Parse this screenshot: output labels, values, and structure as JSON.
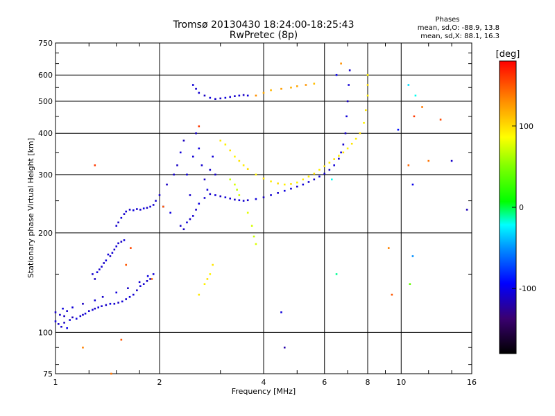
{
  "chart_data": {
    "type": "scatter",
    "title": "Tromsø 20130430 18:24:00-18:25:43",
    "subtitle": "RwPretec (8p)",
    "stats": {
      "heading": "Phases",
      "line_o": "mean, sd,O: -88.9, 13.8",
      "line_x": "mean, sd,X:  88.1, 16.3"
    },
    "xlabel": "Frequency [MHz]",
    "ylabel": "Stationary phase Virtual Height [km]",
    "x_scale": "log",
    "y_scale": "log",
    "xlim": [
      1,
      16
    ],
    "ylim": [
      75,
      750
    ],
    "x_ticks": [
      1,
      2,
      4,
      6,
      8,
      10,
      16
    ],
    "x_tick_labels": [
      "1",
      "2",
      "4",
      "6",
      "8",
      "10",
      "16"
    ],
    "y_ticks": [
      75,
      100,
      200,
      300,
      400,
      500,
      600,
      750
    ],
    "y_tick_labels": [
      "75",
      "100",
      "200",
      "300",
      "400",
      "500",
      "600",
      "750"
    ],
    "grid": true,
    "colorbar": {
      "label": "[deg]",
      "range": [
        -180,
        180
      ],
      "ticks": [
        100,
        0,
        -100
      ],
      "tick_labels": [
        "100",
        "0",
        "-100"
      ]
    },
    "series": [
      {
        "points": [
          [
            1.0,
            108,
            -105
          ],
          [
            1.02,
            106,
            -110
          ],
          [
            1.04,
            104,
            -108
          ],
          [
            1.06,
            107,
            -112
          ],
          [
            1.08,
            103,
            -100
          ],
          [
            1.1,
            109,
            -106
          ],
          [
            1.12,
            111,
            -115
          ],
          [
            1.15,
            110,
            -103
          ],
          [
            1.18,
            112,
            -109
          ],
          [
            1.2,
            113,
            -111
          ],
          [
            1.22,
            114,
            -104
          ],
          [
            1.25,
            116,
            -110
          ],
          [
            1.28,
            117,
            -107
          ],
          [
            1.3,
            118,
            -112
          ],
          [
            1.33,
            119,
            -105
          ],
          [
            1.36,
            120,
            -108
          ],
          [
            1.4,
            121,
            -111
          ],
          [
            1.44,
            122,
            -103
          ],
          [
            1.48,
            122,
            -109
          ],
          [
            1.52,
            123,
            -112
          ],
          [
            1.56,
            124,
            -106
          ],
          [
            1.6,
            126,
            -110
          ],
          [
            1.64,
            128,
            -104
          ],
          [
            1.68,
            130,
            -107
          ],
          [
            1.72,
            134,
            -111
          ],
          [
            1.76,
            138,
            -105
          ],
          [
            1.8,
            140,
            -108
          ],
          [
            1.84,
            143,
            -112
          ],
          [
            1.88,
            145,
            -100
          ],
          [
            1.92,
            150,
            -106
          ]
        ]
      },
      {
        "points": [
          [
            1.0,
            115,
            -110
          ],
          [
            1.03,
            113,
            -108
          ],
          [
            1.06,
            112,
            -112
          ],
          [
            1.05,
            118,
            -104
          ],
          [
            1.08,
            116,
            -109
          ],
          [
            1.12,
            119,
            -106
          ],
          [
            1.2,
            122,
            -113
          ],
          [
            1.3,
            125,
            -107
          ],
          [
            1.37,
            128,
            -110
          ],
          [
            1.5,
            132,
            -105
          ],
          [
            1.62,
            136,
            -111
          ],
          [
            1.75,
            142,
            -108
          ],
          [
            1.85,
            148,
            -103
          ]
        ]
      },
      {
        "points": [
          [
            1.28,
            150,
            -109
          ],
          [
            1.3,
            145,
            -112
          ],
          [
            1.32,
            152,
            -105
          ],
          [
            1.34,
            155,
            -110
          ],
          [
            1.36,
            158,
            -108
          ],
          [
            1.38,
            162,
            -111
          ],
          [
            1.4,
            165,
            -104
          ]
        ]
      },
      {
        "points": [
          [
            1.42,
            172,
            -106
          ],
          [
            1.44,
            170,
            -110
          ],
          [
            1.46,
            174,
            -107
          ],
          [
            1.48,
            178,
            -112
          ],
          [
            1.5,
            182,
            -105
          ],
          [
            1.52,
            186,
            -109
          ],
          [
            1.55,
            188,
            -111
          ],
          [
            1.58,
            190,
            -104
          ]
        ]
      },
      {
        "points": [
          [
            1.5,
            210,
            -108
          ],
          [
            1.52,
            215,
            -112
          ],
          [
            1.55,
            222,
            -105
          ],
          [
            1.58,
            228,
            -110
          ],
          [
            1.6,
            232,
            -107
          ],
          [
            1.64,
            235,
            -111
          ],
          [
            1.68,
            234,
            -104
          ],
          [
            1.72,
            236,
            -108
          ],
          [
            1.76,
            235,
            -110
          ],
          [
            1.8,
            237,
            -103
          ],
          [
            1.84,
            238,
            -112
          ],
          [
            1.88,
            240,
            -106
          ],
          [
            1.92,
            243,
            -109
          ]
        ]
      },
      {
        "points": [
          [
            1.95,
            250,
            -108
          ],
          [
            2.0,
            260,
            -110
          ],
          [
            2.05,
            240,
            -105
          ],
          [
            2.1,
            280,
            -112
          ],
          [
            2.15,
            230,
            -104
          ],
          [
            2.2,
            300,
            -109
          ],
          [
            2.25,
            320,
            -111
          ],
          [
            2.3,
            350,
            -106
          ],
          [
            2.35,
            380,
            -113
          ],
          [
            2.4,
            300,
            -105
          ],
          [
            2.45,
            260,
            -110
          ],
          [
            2.5,
            340,
            -107
          ],
          [
            2.55,
            400,
            -111
          ],
          [
            2.6,
            360,
            -104
          ],
          [
            2.65,
            320,
            -108
          ],
          [
            2.7,
            290,
            -112
          ],
          [
            2.75,
            270,
            -105
          ],
          [
            2.8,
            310,
            -109
          ],
          [
            2.85,
            340,
            -106
          ],
          [
            2.9,
            300,
            -110
          ]
        ]
      },
      {
        "points": [
          [
            2.3,
            210,
            -109
          ],
          [
            2.35,
            205,
            -112
          ],
          [
            2.4,
            215,
            -105
          ],
          [
            2.45,
            220,
            -110
          ],
          [
            2.5,
            225,
            -108
          ],
          [
            2.55,
            235,
            -111
          ],
          [
            2.6,
            245,
            -104
          ],
          [
            2.7,
            255,
            -107
          ],
          [
            2.8,
            262,
            -110
          ],
          [
            2.9,
            260,
            -106
          ],
          [
            3.0,
            258,
            -112
          ],
          [
            3.1,
            256,
            -105
          ],
          [
            3.2,
            254,
            -109
          ],
          [
            3.3,
            252,
            -111
          ],
          [
            3.4,
            251,
            -106
          ],
          [
            3.5,
            250,
            -108
          ],
          [
            3.6,
            251,
            -110
          ],
          [
            3.8,
            253,
            -105
          ],
          [
            4.0,
            256,
            -112
          ],
          [
            4.2,
            260,
            -107
          ],
          [
            4.4,
            264,
            -110
          ],
          [
            4.6,
            268,
            -104
          ],
          [
            4.8,
            272,
            -109
          ],
          [
            5.0,
            276,
            -111
          ],
          [
            5.2,
            280,
            -106
          ],
          [
            5.4,
            285,
            -108
          ],
          [
            5.6,
            290,
            -112
          ],
          [
            5.8,
            296,
            -105
          ],
          [
            6.0,
            302,
            -109
          ],
          [
            6.2,
            310,
            -110
          ],
          [
            6.4,
            320,
            -106
          ],
          [
            6.6,
            335,
            -111
          ],
          [
            6.7,
            350,
            -104
          ],
          [
            6.8,
            370,
            -108
          ],
          [
            6.9,
            400,
            -110
          ],
          [
            6.95,
            450,
            -105
          ],
          [
            7.0,
            500,
            -112
          ],
          [
            7.05,
            560,
            -107
          ],
          [
            7.1,
            620,
            -110
          ]
        ]
      },
      {
        "points": [
          [
            2.5,
            560,
            -106
          ],
          [
            2.55,
            545,
            -110
          ],
          [
            2.6,
            530,
            -108
          ],
          [
            2.7,
            520,
            -112
          ],
          [
            2.8,
            512,
            -105
          ],
          [
            2.9,
            508,
            -109
          ],
          [
            3.0,
            510,
            -111
          ],
          [
            3.1,
            512,
            -104
          ],
          [
            3.2,
            515,
            -108
          ],
          [
            3.3,
            518,
            -110
          ],
          [
            3.4,
            520,
            -106
          ],
          [
            3.5,
            522,
            -112
          ],
          [
            3.6,
            520,
            -105
          ]
        ]
      },
      {
        "points": [
          [
            3.0,
            380,
            95
          ],
          [
            3.1,
            370,
            92
          ],
          [
            3.2,
            355,
            98
          ],
          [
            3.3,
            340,
            90
          ],
          [
            3.4,
            330,
            96
          ],
          [
            3.5,
            320,
            93
          ],
          [
            3.6,
            312,
            99
          ],
          [
            3.8,
            300,
            91
          ],
          [
            4.0,
            292,
            97
          ],
          [
            4.2,
            286,
            94
          ],
          [
            4.4,
            282,
            100
          ],
          [
            4.6,
            280,
            92
          ],
          [
            4.8,
            281,
            98
          ],
          [
            5.0,
            284,
            90
          ],
          [
            5.2,
            290,
            96
          ],
          [
            5.4,
            296,
            93
          ],
          [
            5.6,
            302,
            99
          ],
          [
            5.8,
            310,
            91
          ],
          [
            6.0,
            318,
            97
          ],
          [
            6.2,
            326,
            94
          ],
          [
            6.4,
            334,
            100
          ],
          [
            6.6,
            342,
            92
          ],
          [
            6.8,
            350,
            98
          ],
          [
            7.0,
            360,
            90
          ],
          [
            7.2,
            372,
            96
          ],
          [
            7.4,
            385,
            93
          ],
          [
            7.6,
            400,
            99
          ],
          [
            7.8,
            430,
            91
          ],
          [
            7.9,
            470,
            97
          ],
          [
            8.0,
            520,
            94
          ],
          [
            8.0,
            560,
            100
          ],
          [
            8.0,
            600,
            92
          ]
        ]
      },
      {
        "points": [
          [
            3.2,
            290,
            70
          ],
          [
            3.3,
            280,
            75
          ],
          [
            3.35,
            270,
            68
          ],
          [
            3.4,
            260,
            72
          ],
          [
            3.6,
            230,
            78
          ],
          [
            3.7,
            210,
            74
          ],
          [
            3.75,
            195,
            70
          ],
          [
            3.8,
            185,
            76
          ]
        ]
      },
      {
        "points": [
          [
            3.8,
            520,
            130
          ],
          [
            4.0,
            530,
            120
          ],
          [
            4.2,
            540,
            115
          ],
          [
            4.5,
            545,
            125
          ],
          [
            4.8,
            550,
            118
          ],
          [
            5.0,
            555,
            122
          ],
          [
            5.3,
            560,
            128
          ],
          [
            5.6,
            565,
            112
          ]
        ]
      },
      {
        "points": [
          [
            2.6,
            130,
            95
          ],
          [
            2.7,
            140,
            92
          ],
          [
            2.75,
            145,
            98
          ],
          [
            2.8,
            150,
            90
          ],
          [
            2.85,
            160,
            96
          ]
        ]
      },
      {
        "points": [
          [
            1.6,
            160,
            150
          ],
          [
            1.9,
            145,
            145
          ],
          [
            1.2,
            90,
            135
          ],
          [
            1.45,
            75,
            140
          ],
          [
            1.55,
            95,
            150
          ],
          [
            1.3,
            320,
            160
          ],
          [
            1.65,
            180,
            155
          ],
          [
            2.05,
            240,
            148
          ],
          [
            9.2,
            180,
            135
          ],
          [
            9.4,
            130,
            150
          ],
          [
            10.5,
            320,
            145
          ],
          [
            12.0,
            330,
            140
          ],
          [
            11.5,
            480,
            138
          ],
          [
            13.0,
            440,
            155
          ],
          [
            10.5,
            560,
            -30
          ],
          [
            11.0,
            520,
            -20
          ],
          [
            10.8,
            170,
            -50
          ],
          [
            10.6,
            140,
            40
          ],
          [
            6.5,
            150,
            -10
          ],
          [
            6.3,
            290,
            -20
          ],
          [
            9.8,
            410,
            -90
          ],
          [
            10.8,
            280,
            -100
          ],
          [
            14.0,
            330,
            -110
          ],
          [
            15.5,
            235,
            -115
          ],
          [
            4.6,
            90,
            -120
          ],
          [
            4.5,
            115,
            -105
          ],
          [
            6.5,
            600,
            -100
          ],
          [
            6.7,
            650,
            130
          ],
          [
            10.9,
            450,
            160
          ],
          [
            2.6,
            420,
            160
          ]
        ]
      }
    ]
  }
}
